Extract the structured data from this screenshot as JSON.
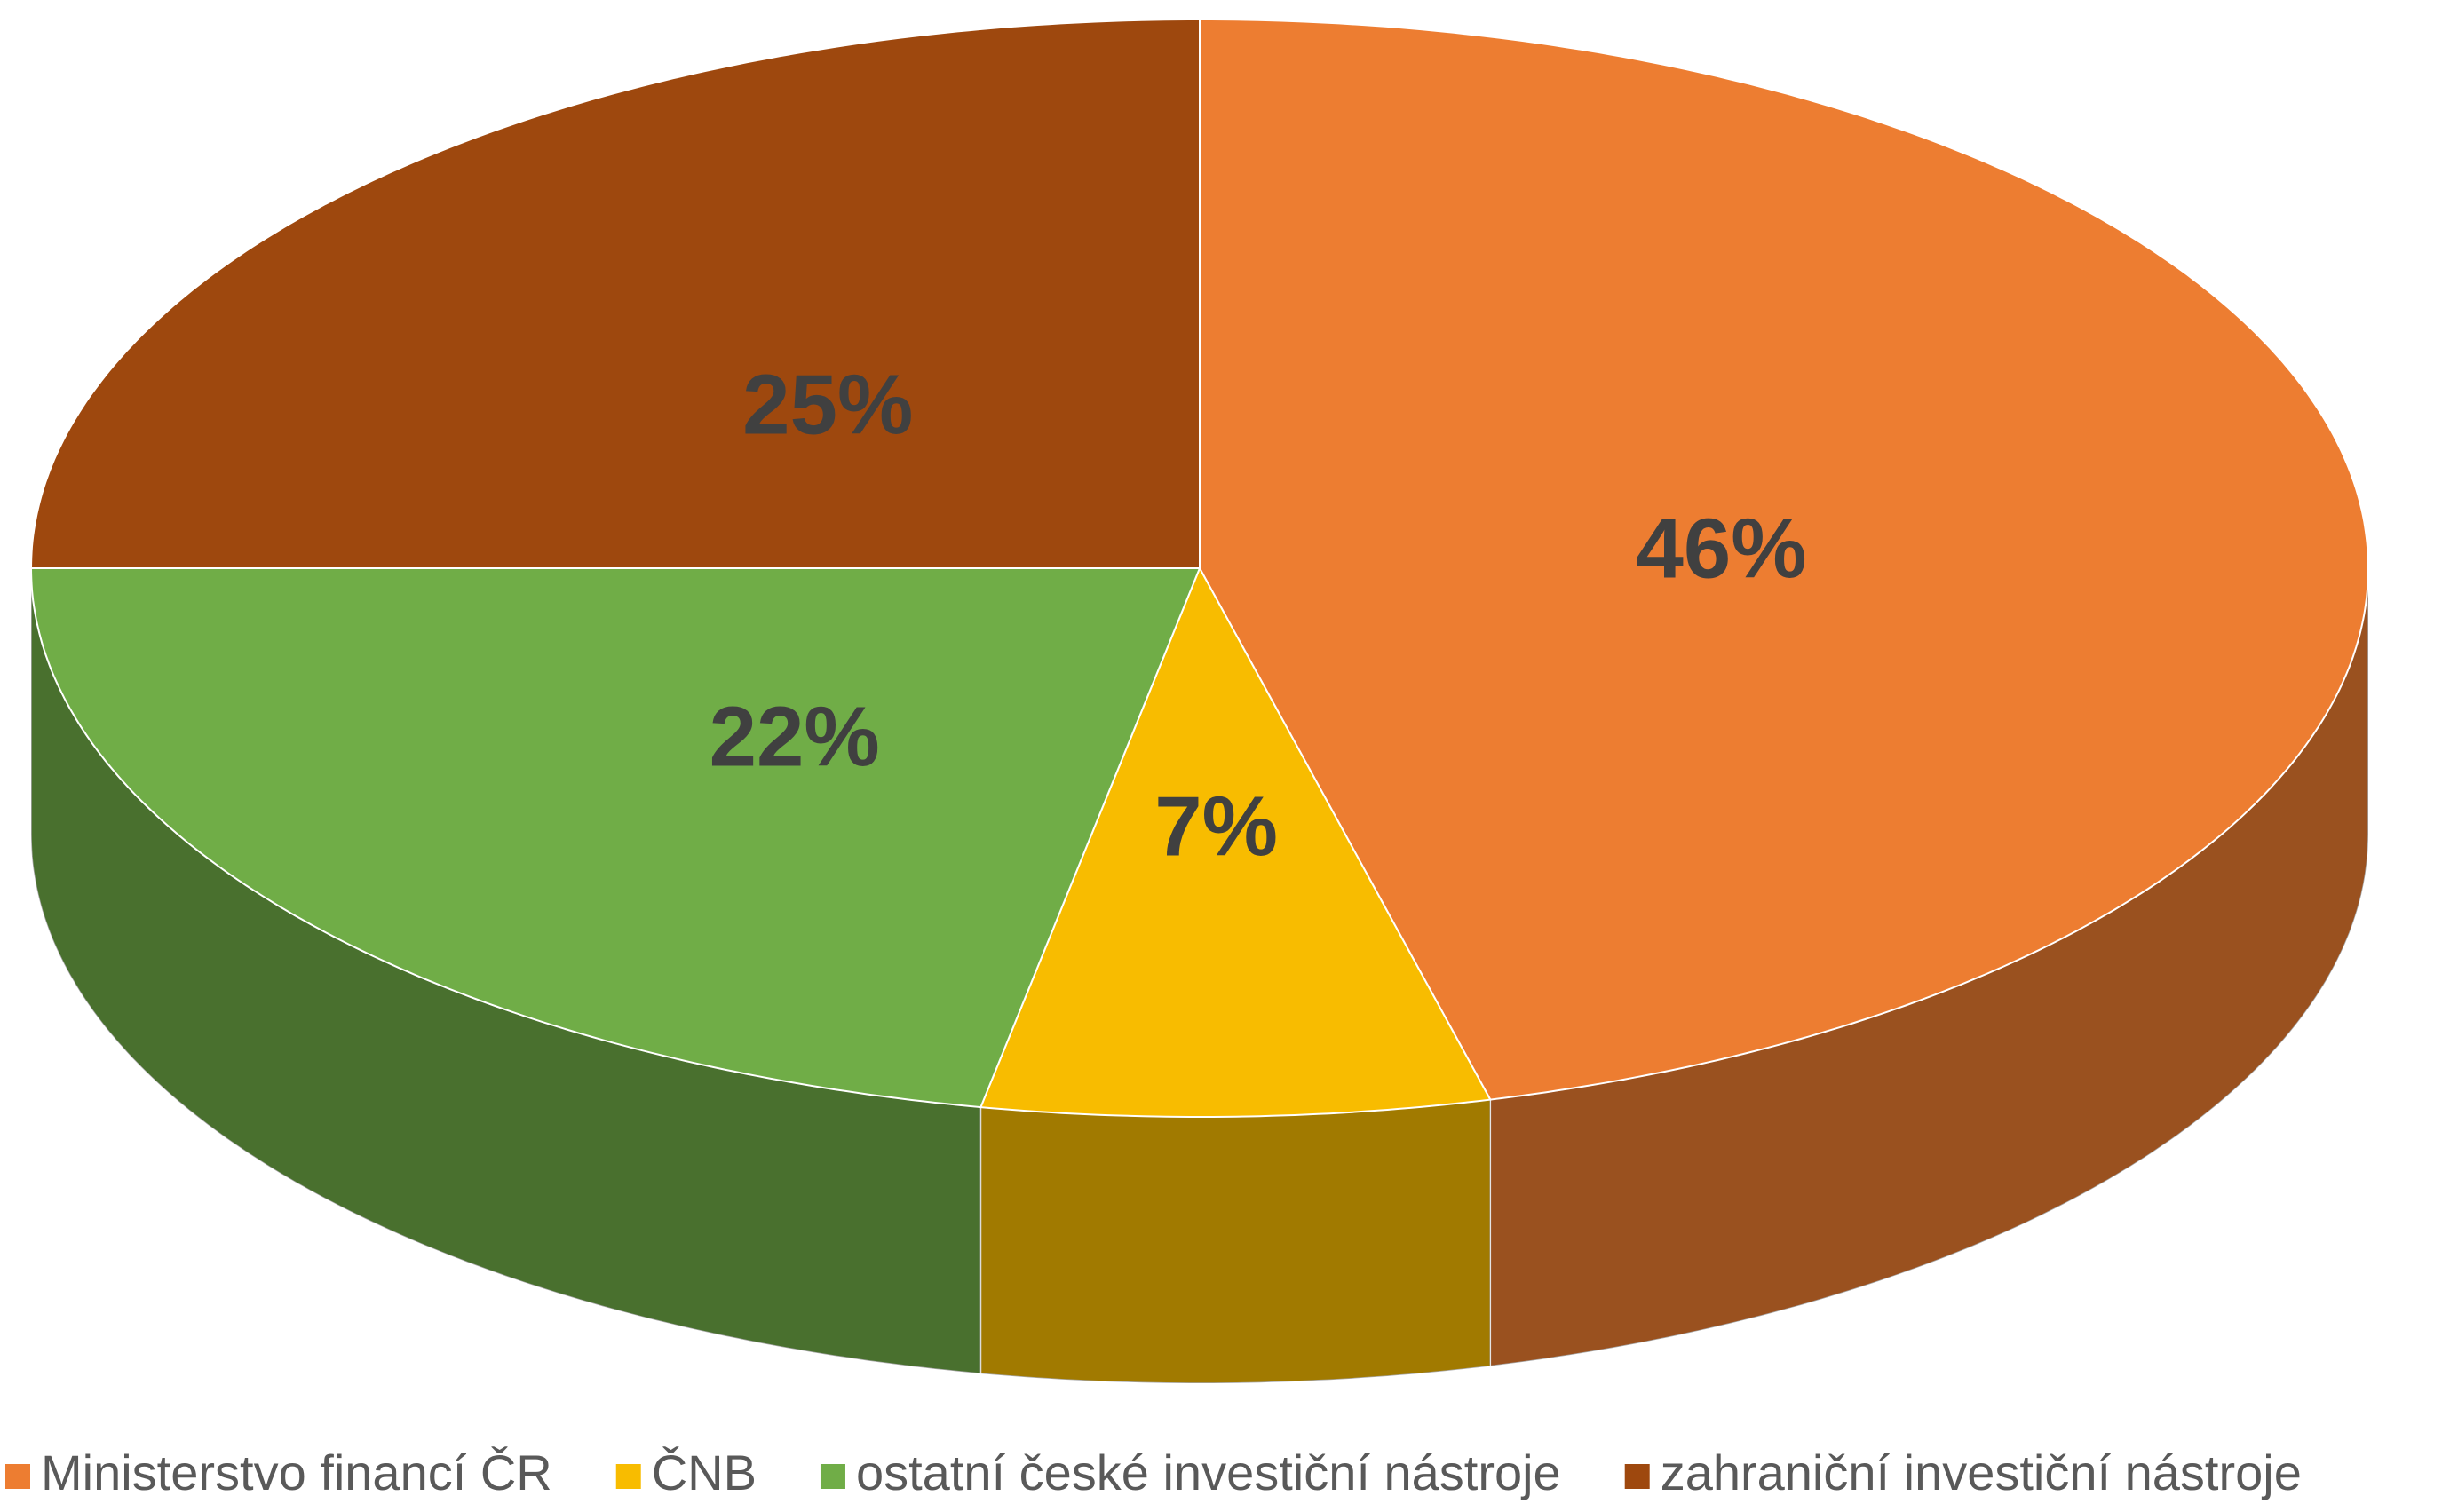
{
  "chart_data": {
    "type": "pie",
    "categories": [
      "Ministerstvo financí ČR",
      "ČNB",
      "ostatní české investiční nástroje",
      "zahraniční investiční nástroje"
    ],
    "values": [
      46,
      7,
      22,
      25
    ],
    "value_labels": [
      "46%",
      "7%",
      "22%",
      "25%"
    ],
    "colors": [
      "#ED7D31",
      "#F8BC00",
      "#70AD47",
      "#9E480E"
    ],
    "legend": "bottom"
  }
}
